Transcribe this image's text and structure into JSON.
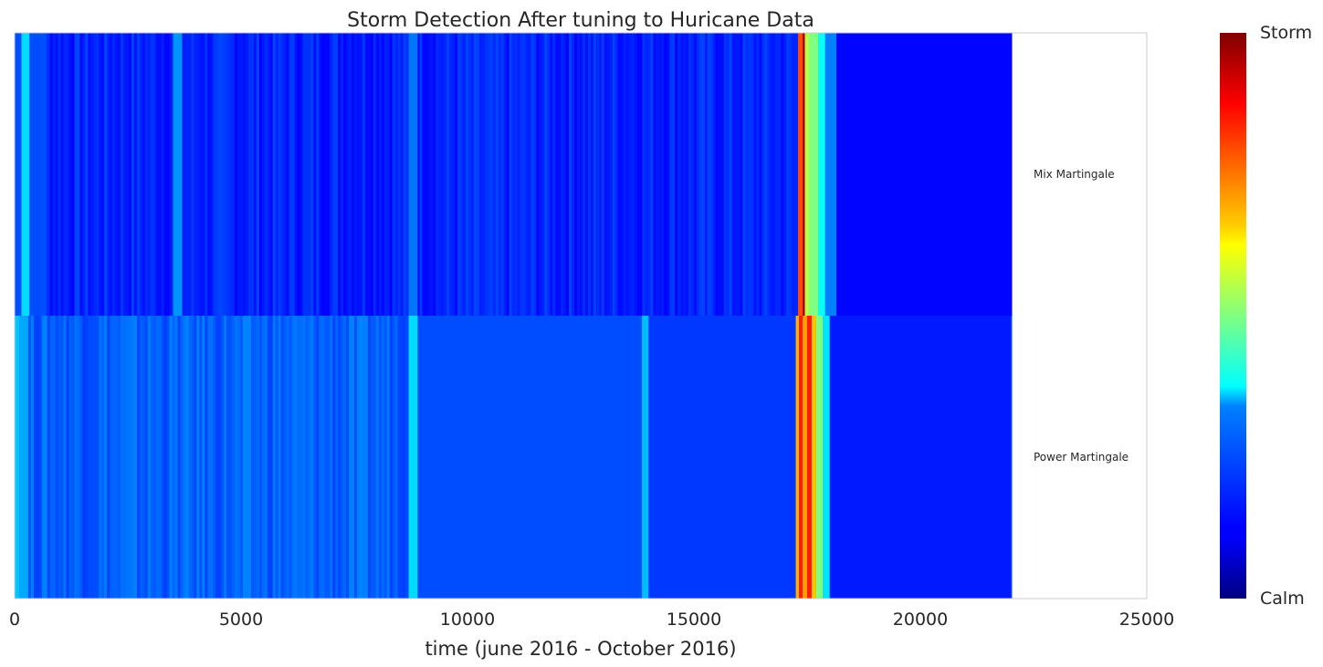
{
  "chart_data": {
    "type": "heatmap",
    "title": "Storm Detection After tuning to Huricane Data",
    "xlabel": "time (june 2016 - October 2016)",
    "ylabel": "",
    "xlim": [
      0,
      25000
    ],
    "xticks": [
      0,
      5000,
      10000,
      15000,
      20000,
      25000
    ],
    "x_data_end": 22000,
    "grid": false,
    "colormap": "jet",
    "value_range": [
      0,
      1
    ],
    "colorbar": {
      "top_label": "Storm",
      "bottom_label": "Calm"
    },
    "series": [
      {
        "name": "Mix Martingale",
        "baseline": 0.16,
        "segments": [
          {
            "x": [
              0,
              150
            ],
            "value": 0.2
          },
          {
            "x": [
              150,
              330
            ],
            "value": 0.34
          },
          {
            "x": [
              330,
              700
            ],
            "value": 0.2
          },
          {
            "x": [
              700,
              3500
            ],
            "value": 0.15
          },
          {
            "x": [
              3500,
              3700
            ],
            "value": 0.27
          },
          {
            "x": [
              3700,
              8700
            ],
            "value": 0.15
          },
          {
            "x": [
              8700,
              8900
            ],
            "value": 0.24
          },
          {
            "x": [
              8900,
              17300
            ],
            "value": 0.15
          },
          {
            "x": [
              17300,
              17400
            ],
            "value": 0.8
          },
          {
            "x": [
              17400,
              17450
            ],
            "value": 0.95
          },
          {
            "x": [
              17450,
              17550
            ],
            "value": 0.55
          },
          {
            "x": [
              17550,
              17750
            ],
            "value": 0.5
          },
          {
            "x": [
              17750,
              17900
            ],
            "value": 0.38
          },
          {
            "x": [
              17900,
              18150
            ],
            "value": 0.25
          },
          {
            "x": [
              18150,
              22000
            ],
            "value": 0.13
          }
        ]
      },
      {
        "name": "Power Martingale",
        "baseline": 0.22,
        "segments": [
          {
            "x": [
              0,
              100
            ],
            "value": 0.32
          },
          {
            "x": [
              100,
              300
            ],
            "value": 0.29
          },
          {
            "x": [
              300,
              8700
            ],
            "value": 0.22
          },
          {
            "x": [
              8700,
              8900
            ],
            "value": 0.34
          },
          {
            "x": [
              8900,
              13850
            ],
            "value": 0.2
          },
          {
            "x": [
              13850,
              14000
            ],
            "value": 0.31
          },
          {
            "x": [
              14000,
              17250
            ],
            "value": 0.18
          },
          {
            "x": [
              17250,
              17320
            ],
            "value": 0.7
          },
          {
            "x": [
              17320,
              17400
            ],
            "value": 0.85
          },
          {
            "x": [
              17400,
              17500
            ],
            "value": 0.72
          },
          {
            "x": [
              17500,
              17600
            ],
            "value": 0.85
          },
          {
            "x": [
              17600,
              17700
            ],
            "value": 0.68
          },
          {
            "x": [
              17700,
              17850
            ],
            "value": 0.5
          },
          {
            "x": [
              17850,
              18000
            ],
            "value": 0.35
          },
          {
            "x": [
              18000,
              22000
            ],
            "value": 0.15
          }
        ]
      }
    ]
  }
}
